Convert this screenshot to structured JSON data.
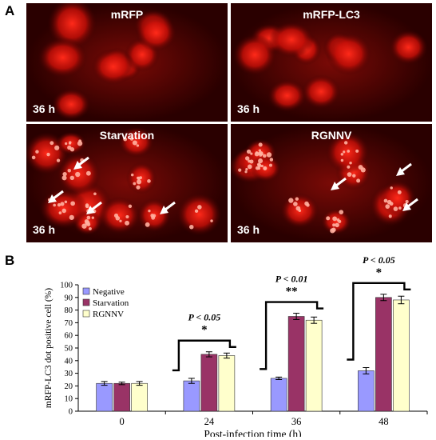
{
  "figure": {
    "panel_a_letter": "A",
    "panel_b_letter": "B",
    "panels": [
      {
        "title": "mRFP",
        "time": "36 h",
        "pattern": "diffuse",
        "arrows": 0
      },
      {
        "title": "mRFP-LC3",
        "time": "36 h",
        "pattern": "diffuse",
        "arrows": 0
      },
      {
        "title": "Starvation",
        "time": "36 h",
        "pattern": "puncta",
        "arrows": 4
      },
      {
        "title": "RGNNV",
        "time": "36 h",
        "pattern": "puncta",
        "arrows": 3
      }
    ]
  },
  "chart_data": {
    "type": "bar",
    "categories": [
      "0",
      "24",
      "36",
      "48"
    ],
    "xlabel": "Post-infection time (h)",
    "ylabel": "mRFP-LC3 dot positive cell (%)",
    "ylim": [
      0,
      100
    ],
    "yticks": [
      "0",
      "10",
      "20",
      "30",
      "40",
      "50",
      "60",
      "70",
      "80",
      "90",
      "100"
    ],
    "legend_position": "top-left",
    "series": [
      {
        "name": "Negative",
        "color": "#9999ff",
        "values": [
          22,
          24,
          26,
          32
        ],
        "errors": [
          1.5,
          2,
          1,
          2.5
        ]
      },
      {
        "name": "Starvation",
        "color": "#993366",
        "values": [
          22,
          45,
          75,
          90
        ],
        "errors": [
          1,
          2,
          2.5,
          2.5
        ]
      },
      {
        "name": "RGNNV",
        "color": "#ffffcc",
        "values": [
          22,
          44,
          72,
          88
        ],
        "errors": [
          1.5,
          2,
          2.5,
          3
        ]
      }
    ],
    "annotations": [
      {
        "category": "24",
        "p_text": "P < 0.05",
        "stars": "*"
      },
      {
        "category": "36",
        "p_text": "P < 0.01",
        "stars": "**"
      },
      {
        "category": "48",
        "p_text": "P < 0.05",
        "stars": "*"
      }
    ]
  }
}
